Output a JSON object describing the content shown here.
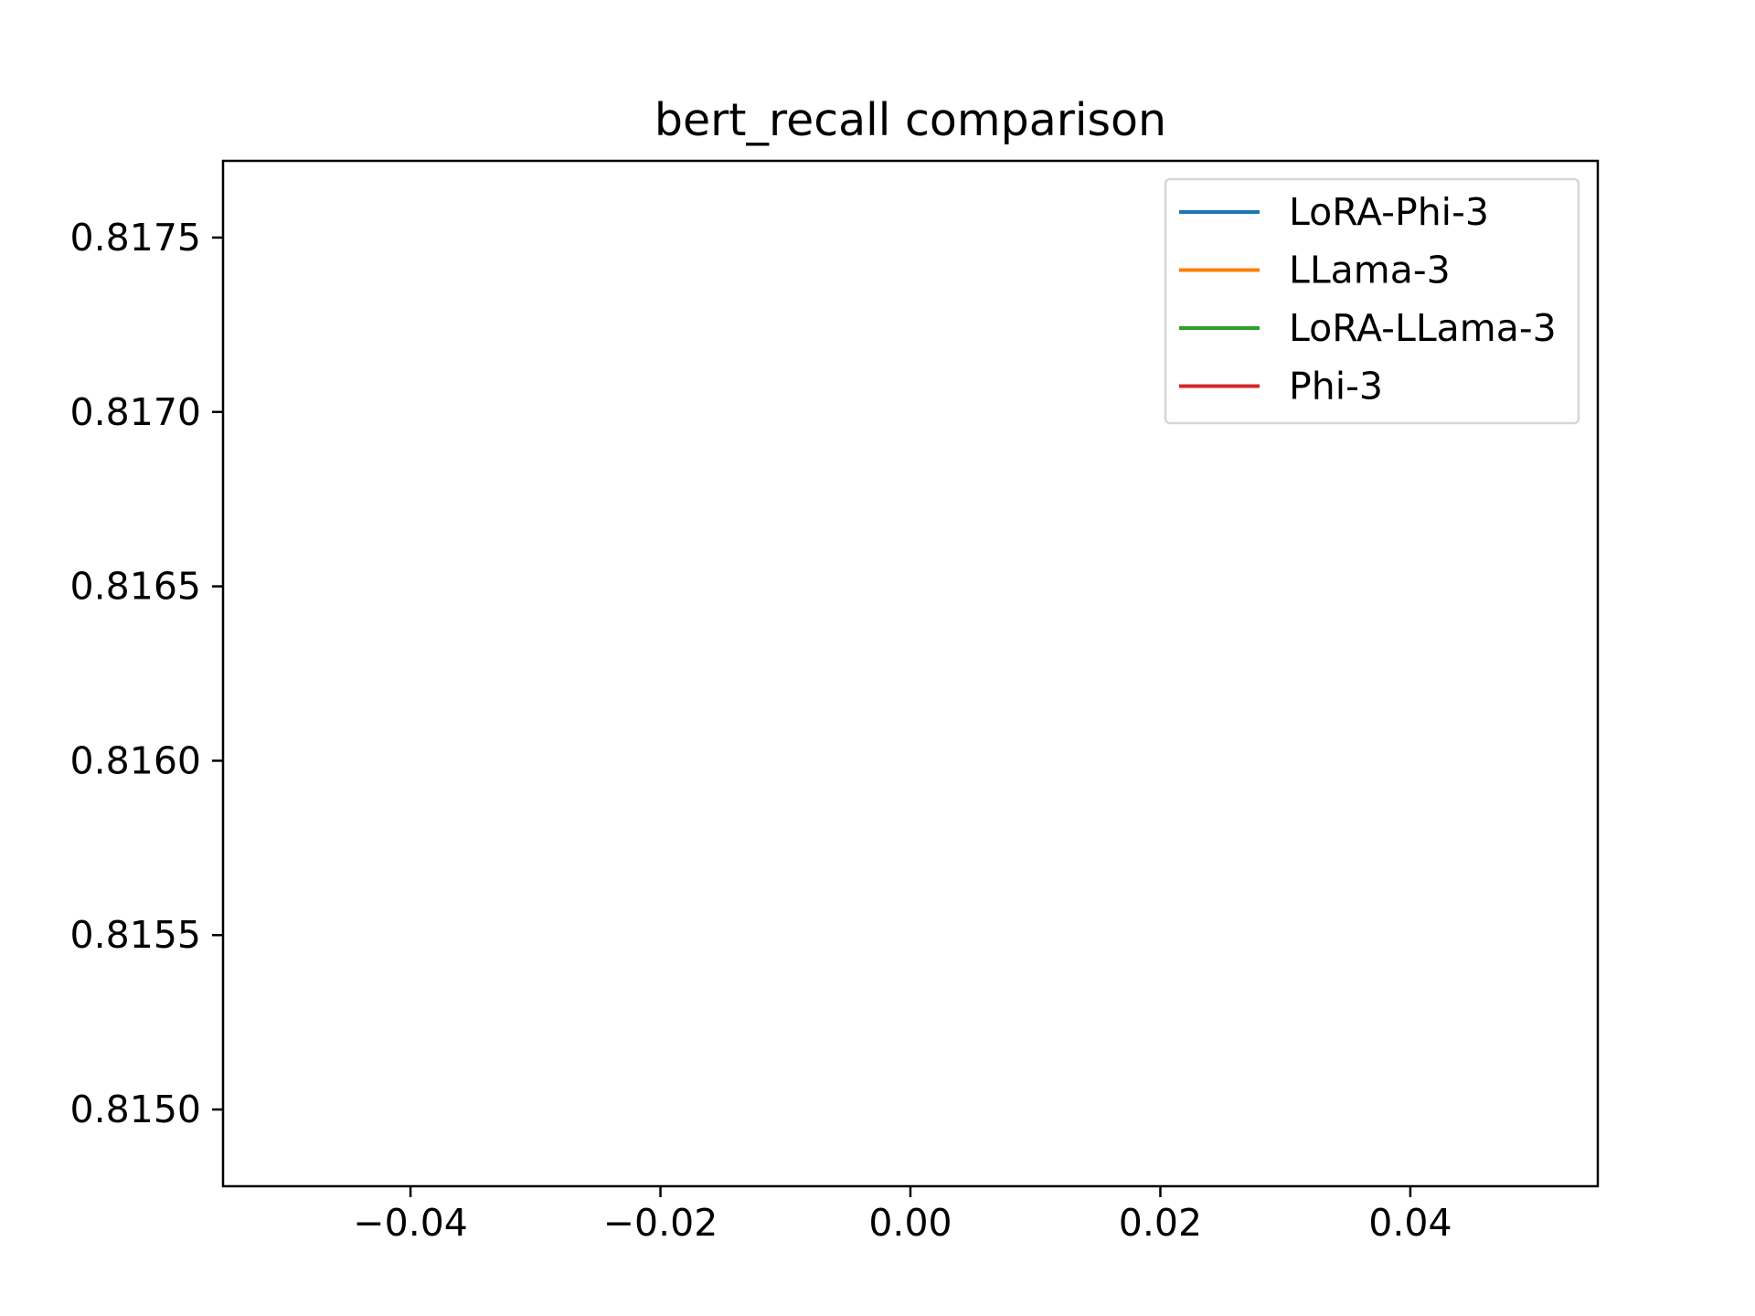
{
  "chart_data": {
    "type": "line",
    "title": "bert_recall comparison",
    "xlabel": "",
    "ylabel": "",
    "xlim": [
      -0.055,
      0.055
    ],
    "ylim": [
      0.81478,
      0.81772
    ],
    "x_ticks": [
      -0.04,
      -0.02,
      0.0,
      0.02,
      0.04
    ],
    "x_tick_labels": [
      "−0.04",
      "−0.02",
      "0.00",
      "0.02",
      "0.04"
    ],
    "y_ticks": [
      0.815,
      0.8155,
      0.816,
      0.8165,
      0.817,
      0.8175
    ],
    "y_tick_labels": [
      "0.8150",
      "0.8155",
      "0.8160",
      "0.8165",
      "0.8170",
      "0.8175"
    ],
    "grid": false,
    "legend_position": "top-right",
    "series": [
      {
        "name": "LoRA-Phi-3",
        "color": "#1f77b4",
        "x": [],
        "y": []
      },
      {
        "name": "LLama-3",
        "color": "#ff7f0e",
        "x": [],
        "y": []
      },
      {
        "name": "LoRA-LLama-3",
        "color": "#2ca02c",
        "x": [],
        "y": []
      },
      {
        "name": "Phi-3",
        "color": "#d62728",
        "x": [],
        "y": []
      }
    ]
  }
}
